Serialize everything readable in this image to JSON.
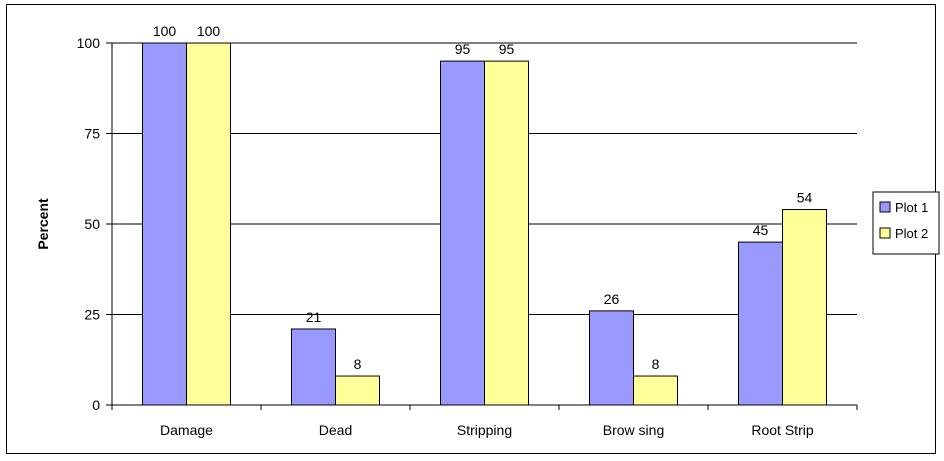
{
  "chart_data": {
    "type": "bar",
    "categories": [
      "Damage",
      "Dead",
      "Stripping",
      "Brow sing",
      "Root Strip"
    ],
    "series": [
      {
        "name": "Plot 1",
        "values": [
          100,
          21,
          95,
          26,
          45
        ],
        "labels": [
          "100",
          "21",
          "95",
          "26",
          "45"
        ],
        "color": "#9999ff"
      },
      {
        "name": "Plot 2",
        "values": [
          100,
          8,
          95,
          8,
          54
        ],
        "labels": [
          "100",
          "8",
          "95",
          "8",
          "54"
        ],
        "color": "#ffff99"
      }
    ],
    "title": "",
    "xlabel": "",
    "ylabel": "Percent",
    "ylim": [
      0,
      100
    ],
    "yticks": [
      0,
      25,
      50,
      75,
      100
    ],
    "ytick_labels": [
      "0",
      "25",
      "50",
      "75",
      "100"
    ],
    "grid": true,
    "legend_position": "right"
  }
}
